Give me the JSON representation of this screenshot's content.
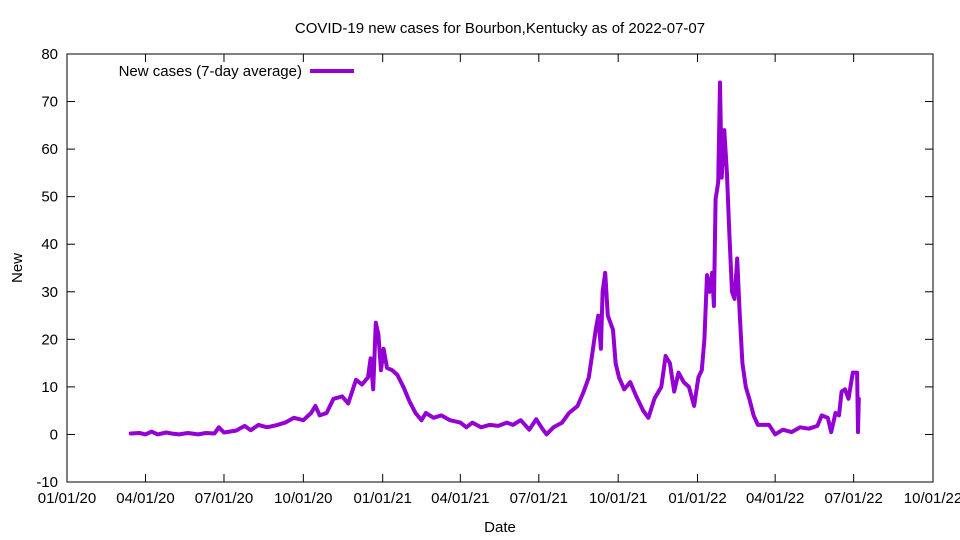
{
  "chart_data": {
    "type": "line",
    "title": "COVID-19 new cases for Bourbon,Kentucky as of 2022-07-07",
    "xlabel": "Date",
    "ylabel": "New",
    "xlim": [
      "2020-01-01",
      "2022-10-01"
    ],
    "ylim": [
      -10,
      80
    ],
    "yticks": [
      -10,
      0,
      10,
      20,
      30,
      40,
      50,
      60,
      70,
      80
    ],
    "xticks": [
      {
        "date": "2020-01-01",
        "label": "01/01/20"
      },
      {
        "date": "2020-04-01",
        "label": "04/01/20"
      },
      {
        "date": "2020-07-01",
        "label": "07/01/20"
      },
      {
        "date": "2020-10-01",
        "label": "10/01/20"
      },
      {
        "date": "2021-01-01",
        "label": "01/01/21"
      },
      {
        "date": "2021-04-01",
        "label": "04/01/21"
      },
      {
        "date": "2021-07-01",
        "label": "07/01/21"
      },
      {
        "date": "2021-10-01",
        "label": "10/01/21"
      },
      {
        "date": "2022-01-01",
        "label": "01/01/22"
      },
      {
        "date": "2022-04-01",
        "label": "04/01/22"
      },
      {
        "date": "2022-07-01",
        "label": "07/01/22"
      },
      {
        "date": "2022-10-01",
        "label": "10/01/22"
      }
    ],
    "grid": false,
    "legend_position": "top-left",
    "series": [
      {
        "name": "New cases (7-day average)",
        "color": "#9400d3",
        "points": [
          [
            "2020-03-15",
            0.2
          ],
          [
            "2020-03-25",
            0.3
          ],
          [
            "2020-04-01",
            0.0
          ],
          [
            "2020-04-08",
            0.6
          ],
          [
            "2020-04-15",
            0.0
          ],
          [
            "2020-04-25",
            0.4
          ],
          [
            "2020-05-01",
            0.2
          ],
          [
            "2020-05-10",
            0.0
          ],
          [
            "2020-05-20",
            0.3
          ],
          [
            "2020-06-01",
            0.0
          ],
          [
            "2020-06-10",
            0.3
          ],
          [
            "2020-06-20",
            0.2
          ],
          [
            "2020-06-25",
            1.5
          ],
          [
            "2020-07-01",
            0.4
          ],
          [
            "2020-07-15",
            0.8
          ],
          [
            "2020-07-25",
            1.8
          ],
          [
            "2020-08-01",
            0.9
          ],
          [
            "2020-08-10",
            2.0
          ],
          [
            "2020-08-20",
            1.5
          ],
          [
            "2020-09-01",
            2.0
          ],
          [
            "2020-09-10",
            2.5
          ],
          [
            "2020-09-20",
            3.5
          ],
          [
            "2020-10-01",
            3.0
          ],
          [
            "2020-10-10",
            4.5
          ],
          [
            "2020-10-15",
            6.0
          ],
          [
            "2020-10-20",
            4.0
          ],
          [
            "2020-10-28",
            4.5
          ],
          [
            "2020-11-05",
            7.5
          ],
          [
            "2020-11-15",
            8.0
          ],
          [
            "2020-11-22",
            6.5
          ],
          [
            "2020-12-01",
            11.5
          ],
          [
            "2020-12-08",
            10.5
          ],
          [
            "2020-12-15",
            12.0
          ],
          [
            "2020-12-18",
            16.0
          ],
          [
            "2020-12-21",
            9.5
          ],
          [
            "2020-12-24",
            23.5
          ],
          [
            "2020-12-27",
            21.0
          ],
          [
            "2020-12-30",
            13.5
          ],
          [
            "2021-01-02",
            18.0
          ],
          [
            "2021-01-06",
            14.0
          ],
          [
            "2021-01-12",
            13.5
          ],
          [
            "2021-01-18",
            12.5
          ],
          [
            "2021-01-25",
            10.0
          ],
          [
            "2021-02-01",
            7.0
          ],
          [
            "2021-02-08",
            4.5
          ],
          [
            "2021-02-15",
            3.0
          ],
          [
            "2021-02-20",
            4.5
          ],
          [
            "2021-03-01",
            3.5
          ],
          [
            "2021-03-10",
            4.0
          ],
          [
            "2021-03-20",
            3.0
          ],
          [
            "2021-04-01",
            2.5
          ],
          [
            "2021-04-08",
            1.5
          ],
          [
            "2021-04-15",
            2.5
          ],
          [
            "2021-04-25",
            1.5
          ],
          [
            "2021-05-05",
            2.0
          ],
          [
            "2021-05-15",
            1.8
          ],
          [
            "2021-05-25",
            2.5
          ],
          [
            "2021-06-01",
            2.0
          ],
          [
            "2021-06-10",
            3.0
          ],
          [
            "2021-06-20",
            1.0
          ],
          [
            "2021-06-28",
            3.2
          ],
          [
            "2021-07-05",
            1.2
          ],
          [
            "2021-07-10",
            0.0
          ],
          [
            "2021-07-18",
            1.5
          ],
          [
            "2021-07-28",
            2.5
          ],
          [
            "2021-08-05",
            4.5
          ],
          [
            "2021-08-15",
            6.0
          ],
          [
            "2021-08-22",
            9.0
          ],
          [
            "2021-08-28",
            12.0
          ],
          [
            "2021-09-01",
            17.0
          ],
          [
            "2021-09-05",
            22.0
          ],
          [
            "2021-09-08",
            25.0
          ],
          [
            "2021-09-11",
            18.0
          ],
          [
            "2021-09-13",
            30.0
          ],
          [
            "2021-09-16",
            34.0
          ],
          [
            "2021-09-19",
            25.0
          ],
          [
            "2021-09-25",
            22.0
          ],
          [
            "2021-09-28",
            15.0
          ],
          [
            "2021-10-02",
            12.0
          ],
          [
            "2021-10-08",
            9.5
          ],
          [
            "2021-10-15",
            11.0
          ],
          [
            "2021-10-22",
            8.0
          ],
          [
            "2021-10-30",
            5.0
          ],
          [
            "2021-11-05",
            3.5
          ],
          [
            "2021-11-12",
            7.5
          ],
          [
            "2021-11-20",
            10.0
          ],
          [
            "2021-11-25",
            16.5
          ],
          [
            "2021-11-30",
            15.0
          ],
          [
            "2021-12-05",
            9.0
          ],
          [
            "2021-12-10",
            13.0
          ],
          [
            "2021-12-16",
            11.0
          ],
          [
            "2021-12-22",
            10.0
          ],
          [
            "2021-12-28",
            6.0
          ],
          [
            "2022-01-02",
            12.0
          ],
          [
            "2022-01-06",
            13.5
          ],
          [
            "2022-01-09",
            20.0
          ],
          [
            "2022-01-12",
            33.5
          ],
          [
            "2022-01-15",
            30.0
          ],
          [
            "2022-01-18",
            34.0
          ],
          [
            "2022-01-20",
            27.0
          ],
          [
            "2022-01-22",
            49.5
          ],
          [
            "2022-01-25",
            53.0
          ],
          [
            "2022-01-27",
            74.0
          ],
          [
            "2022-01-29",
            54.0
          ],
          [
            "2022-02-01",
            64.0
          ],
          [
            "2022-02-04",
            55.0
          ],
          [
            "2022-02-07",
            42.0
          ],
          [
            "2022-02-10",
            30.0
          ],
          [
            "2022-02-13",
            28.5
          ],
          [
            "2022-02-16",
            37.0
          ],
          [
            "2022-02-19",
            25.0
          ],
          [
            "2022-02-22",
            15.0
          ],
          [
            "2022-02-26",
            10.0
          ],
          [
            "2022-03-02",
            7.5
          ],
          [
            "2022-03-07",
            4.0
          ],
          [
            "2022-03-12",
            2.0
          ],
          [
            "2022-03-25",
            2.0
          ],
          [
            "2022-04-01",
            0.0
          ],
          [
            "2022-04-10",
            1.0
          ],
          [
            "2022-04-20",
            0.5
          ],
          [
            "2022-04-30",
            1.5
          ],
          [
            "2022-05-10",
            1.2
          ],
          [
            "2022-05-20",
            1.8
          ],
          [
            "2022-05-25",
            4.0
          ],
          [
            "2022-06-01",
            3.5
          ],
          [
            "2022-06-05",
            0.5
          ],
          [
            "2022-06-10",
            4.5
          ],
          [
            "2022-06-14",
            4.0
          ],
          [
            "2022-06-17",
            9.0
          ],
          [
            "2022-06-21",
            9.5
          ],
          [
            "2022-06-25",
            7.5
          ],
          [
            "2022-06-30",
            13.0
          ],
          [
            "2022-07-05",
            13.0
          ],
          [
            "2022-07-06",
            0.5
          ],
          [
            "2022-07-07",
            7.5
          ]
        ]
      }
    ]
  }
}
